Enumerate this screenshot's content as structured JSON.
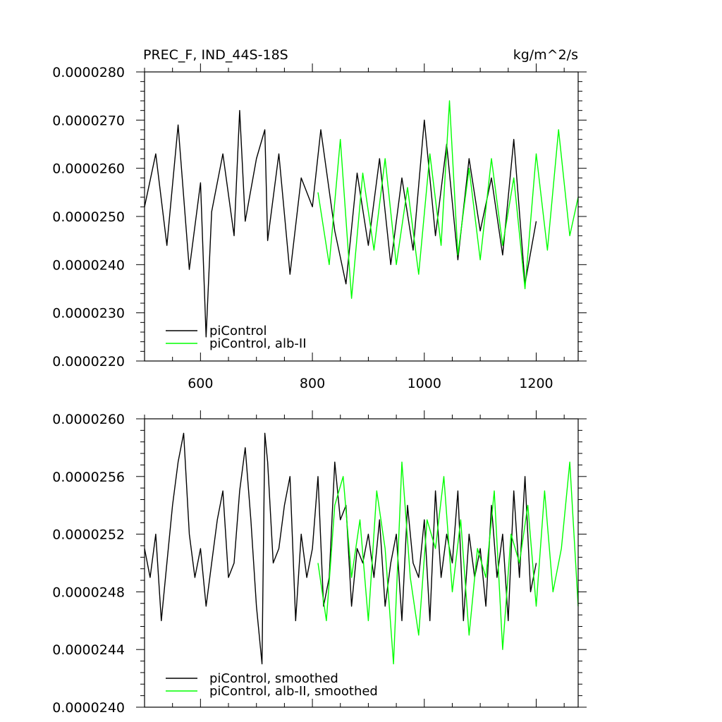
{
  "chart_data": [
    {
      "type": "line",
      "title": "PREC_F, IND_44S-18S",
      "units": "kg/m^2/s",
      "xlim": [
        500,
        1275
      ],
      "ylim": [
        2.2e-05,
        2.8e-05
      ],
      "x_ticks": [
        600,
        800,
        1000,
        1200
      ],
      "x_tick_labels": [
        "600",
        "800",
        "1000",
        "1200"
      ],
      "y_ticks": [
        2.2e-05,
        2.3e-05,
        2.4e-05,
        2.5e-05,
        2.6e-05,
        2.7e-05,
        2.8e-05
      ],
      "y_tick_labels": [
        "0.0000220",
        "0.0000230",
        "0.0000240",
        "0.0000250",
        "0.0000260",
        "0.0000270",
        "0.0000280"
      ],
      "legend_placement": "bottom-left",
      "series": [
        {
          "name": "piControl",
          "color": "#000000",
          "x": [
            500,
            520,
            540,
            560,
            580,
            600,
            610,
            620,
            640,
            660,
            670,
            680,
            700,
            715,
            720,
            740,
            760,
            780,
            800,
            815,
            840,
            860,
            880,
            900,
            920,
            940,
            960,
            980,
            1000,
            1020,
            1040,
            1060,
            1080,
            1100,
            1120,
            1140,
            1160,
            1180,
            1200
          ],
          "values": [
            2.52e-05,
            2.63e-05,
            2.44e-05,
            2.69e-05,
            2.39e-05,
            2.57e-05,
            2.25e-05,
            2.51e-05,
            2.63e-05,
            2.46e-05,
            2.72e-05,
            2.49e-05,
            2.62e-05,
            2.68e-05,
            2.45e-05,
            2.63e-05,
            2.38e-05,
            2.58e-05,
            2.52e-05,
            2.68e-05,
            2.47e-05,
            2.36e-05,
            2.59e-05,
            2.44e-05,
            2.62e-05,
            2.4e-05,
            2.58e-05,
            2.43e-05,
            2.7e-05,
            2.46e-05,
            2.65e-05,
            2.41e-05,
            2.62e-05,
            2.47e-05,
            2.58e-05,
            2.42e-05,
            2.66e-05,
            2.36e-05,
            2.49e-05
          ]
        },
        {
          "name": "piControl, alb-II",
          "color": "#00ff00",
          "x": [
            810,
            830,
            850,
            870,
            890,
            910,
            930,
            950,
            970,
            990,
            1010,
            1030,
            1045,
            1060,
            1080,
            1100,
            1120,
            1140,
            1160,
            1180,
            1200,
            1220,
            1240,
            1260,
            1275
          ],
          "values": [
            2.55e-05,
            2.4e-05,
            2.66e-05,
            2.33e-05,
            2.59e-05,
            2.43e-05,
            2.62e-05,
            2.4e-05,
            2.56e-05,
            2.38e-05,
            2.63e-05,
            2.44e-05,
            2.74e-05,
            2.42e-05,
            2.6e-05,
            2.41e-05,
            2.62e-05,
            2.44e-05,
            2.58e-05,
            2.35e-05,
            2.63e-05,
            2.43e-05,
            2.68e-05,
            2.46e-05,
            2.54e-05
          ]
        }
      ]
    },
    {
      "type": "line",
      "xlim": [
        500,
        1275
      ],
      "ylim": [
        2.4e-05,
        2.6e-05
      ],
      "x_ticks": [
        600,
        800,
        1000,
        1200
      ],
      "y_ticks": [
        2.4e-05,
        2.44e-05,
        2.48e-05,
        2.52e-05,
        2.56e-05,
        2.6e-05
      ],
      "y_tick_labels": [
        "0.0000240",
        "0.0000244",
        "0.0000248",
        "0.0000252",
        "0.0000256",
        "0.0000260"
      ],
      "legend_placement": "bottom-left",
      "series": [
        {
          "name": "piControl, smoothed",
          "color": "#000000",
          "x": [
            500,
            510,
            520,
            530,
            540,
            550,
            560,
            570,
            580,
            590,
            600,
            610,
            620,
            630,
            640,
            650,
            660,
            670,
            680,
            690,
            700,
            710,
            715,
            720,
            730,
            740,
            750,
            760,
            770,
            780,
            790,
            800,
            810,
            820,
            830,
            840,
            850,
            860,
            870,
            880,
            890,
            900,
            910,
            920,
            930,
            940,
            950,
            960,
            970,
            980,
            990,
            1000,
            1010,
            1020,
            1030,
            1040,
            1050,
            1060,
            1070,
            1080,
            1090,
            1100,
            1110,
            1120,
            1130,
            1140,
            1150,
            1160,
            1170,
            1180,
            1190,
            1200
          ],
          "values": [
            2.51e-05,
            2.49e-05,
            2.52e-05,
            2.46e-05,
            2.5e-05,
            2.54e-05,
            2.57e-05,
            2.59e-05,
            2.52e-05,
            2.49e-05,
            2.51e-05,
            2.47e-05,
            2.5e-05,
            2.53e-05,
            2.55e-05,
            2.49e-05,
            2.5e-05,
            2.55e-05,
            2.58e-05,
            2.53e-05,
            2.47e-05,
            2.43e-05,
            2.59e-05,
            2.57e-05,
            2.5e-05,
            2.51e-05,
            2.54e-05,
            2.56e-05,
            2.46e-05,
            2.52e-05,
            2.49e-05,
            2.51e-05,
            2.56e-05,
            2.47e-05,
            2.49e-05,
            2.57e-05,
            2.53e-05,
            2.54e-05,
            2.47e-05,
            2.51e-05,
            2.5e-05,
            2.52e-05,
            2.49e-05,
            2.53e-05,
            2.47e-05,
            2.5e-05,
            2.52e-05,
            2.46e-05,
            2.54e-05,
            2.5e-05,
            2.49e-05,
            2.53e-05,
            2.46e-05,
            2.55e-05,
            2.49e-05,
            2.52e-05,
            2.5e-05,
            2.55e-05,
            2.46e-05,
            2.52e-05,
            2.49e-05,
            2.51e-05,
            2.47e-05,
            2.54e-05,
            2.49e-05,
            2.52e-05,
            2.46e-05,
            2.55e-05,
            2.49e-05,
            2.56e-05,
            2.48e-05,
            2.5e-05
          ]
        },
        {
          "name": "piControl, alb-II, smoothed",
          "color": "#00ff00",
          "x": [
            810,
            825,
            840,
            855,
            870,
            885,
            900,
            915,
            930,
            945,
            960,
            975,
            990,
            1005,
            1020,
            1035,
            1050,
            1065,
            1080,
            1095,
            1110,
            1125,
            1140,
            1155,
            1170,
            1185,
            1200,
            1215,
            1230,
            1245,
            1260,
            1275
          ],
          "values": [
            2.5e-05,
            2.46e-05,
            2.54e-05,
            2.56e-05,
            2.49e-05,
            2.53e-05,
            2.46e-05,
            2.55e-05,
            2.51e-05,
            2.43e-05,
            2.57e-05,
            2.49e-05,
            2.45e-05,
            2.53e-05,
            2.51e-05,
            2.56e-05,
            2.48e-05,
            2.53e-05,
            2.45e-05,
            2.51e-05,
            2.49e-05,
            2.55e-05,
            2.44e-05,
            2.52e-05,
            2.5e-05,
            2.54e-05,
            2.47e-05,
            2.55e-05,
            2.48e-05,
            2.51e-05,
            2.57e-05,
            2.47e-05
          ]
        }
      ]
    }
  ]
}
